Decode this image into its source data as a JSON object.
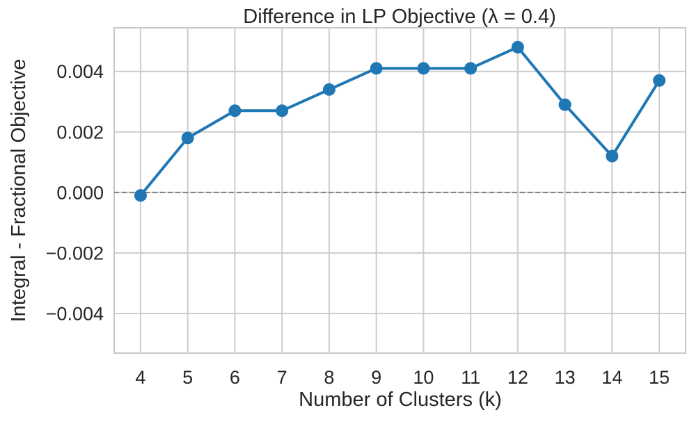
{
  "figure": {
    "background": "#ffffff"
  },
  "chart_data": {
    "type": "line",
    "title": "Difference in LP Objective (λ = 0.4)",
    "xlabel": "Number of Clusters (k)",
    "ylabel": "Integral - Fractional Objective",
    "x": [
      4,
      5,
      6,
      7,
      8,
      9,
      10,
      11,
      12,
      13,
      14,
      15
    ],
    "y": [
      -0.0001,
      0.0018,
      0.0027,
      0.0027,
      0.0034,
      0.0041,
      0.0041,
      0.0041,
      0.0048,
      0.0029,
      0.0012,
      0.0037
    ],
    "xticks": {
      "values": [
        4,
        5,
        6,
        7,
        8,
        9,
        10,
        11,
        12,
        13,
        14,
        15
      ],
      "labels": [
        "4",
        "5",
        "6",
        "7",
        "8",
        "9",
        "10",
        "11",
        "12",
        "13",
        "14",
        "15"
      ]
    },
    "yticks": {
      "values": [
        0.004,
        0.002,
        0.0,
        -0.002,
        -0.004
      ],
      "labels": [
        "0.004",
        "0.002",
        "0.000",
        "−0.002",
        "−0.004"
      ]
    },
    "xlim": [
      3.44,
      15.56
    ],
    "ylim": [
      -0.00531,
      0.00544
    ],
    "grid": true,
    "legend": null,
    "zero_line": {
      "value": 0,
      "style": "dashed",
      "color": "#7f7f7f"
    },
    "style": {
      "line_color": "#1f77b4",
      "marker_color": "#1f77b4",
      "marker": "circle",
      "line_width": 4,
      "marker_radius": 9,
      "grid_color": "#cccccc",
      "spine_color": "#c9c9c9",
      "text_color": "#262626",
      "background": "#ffffff"
    }
  }
}
